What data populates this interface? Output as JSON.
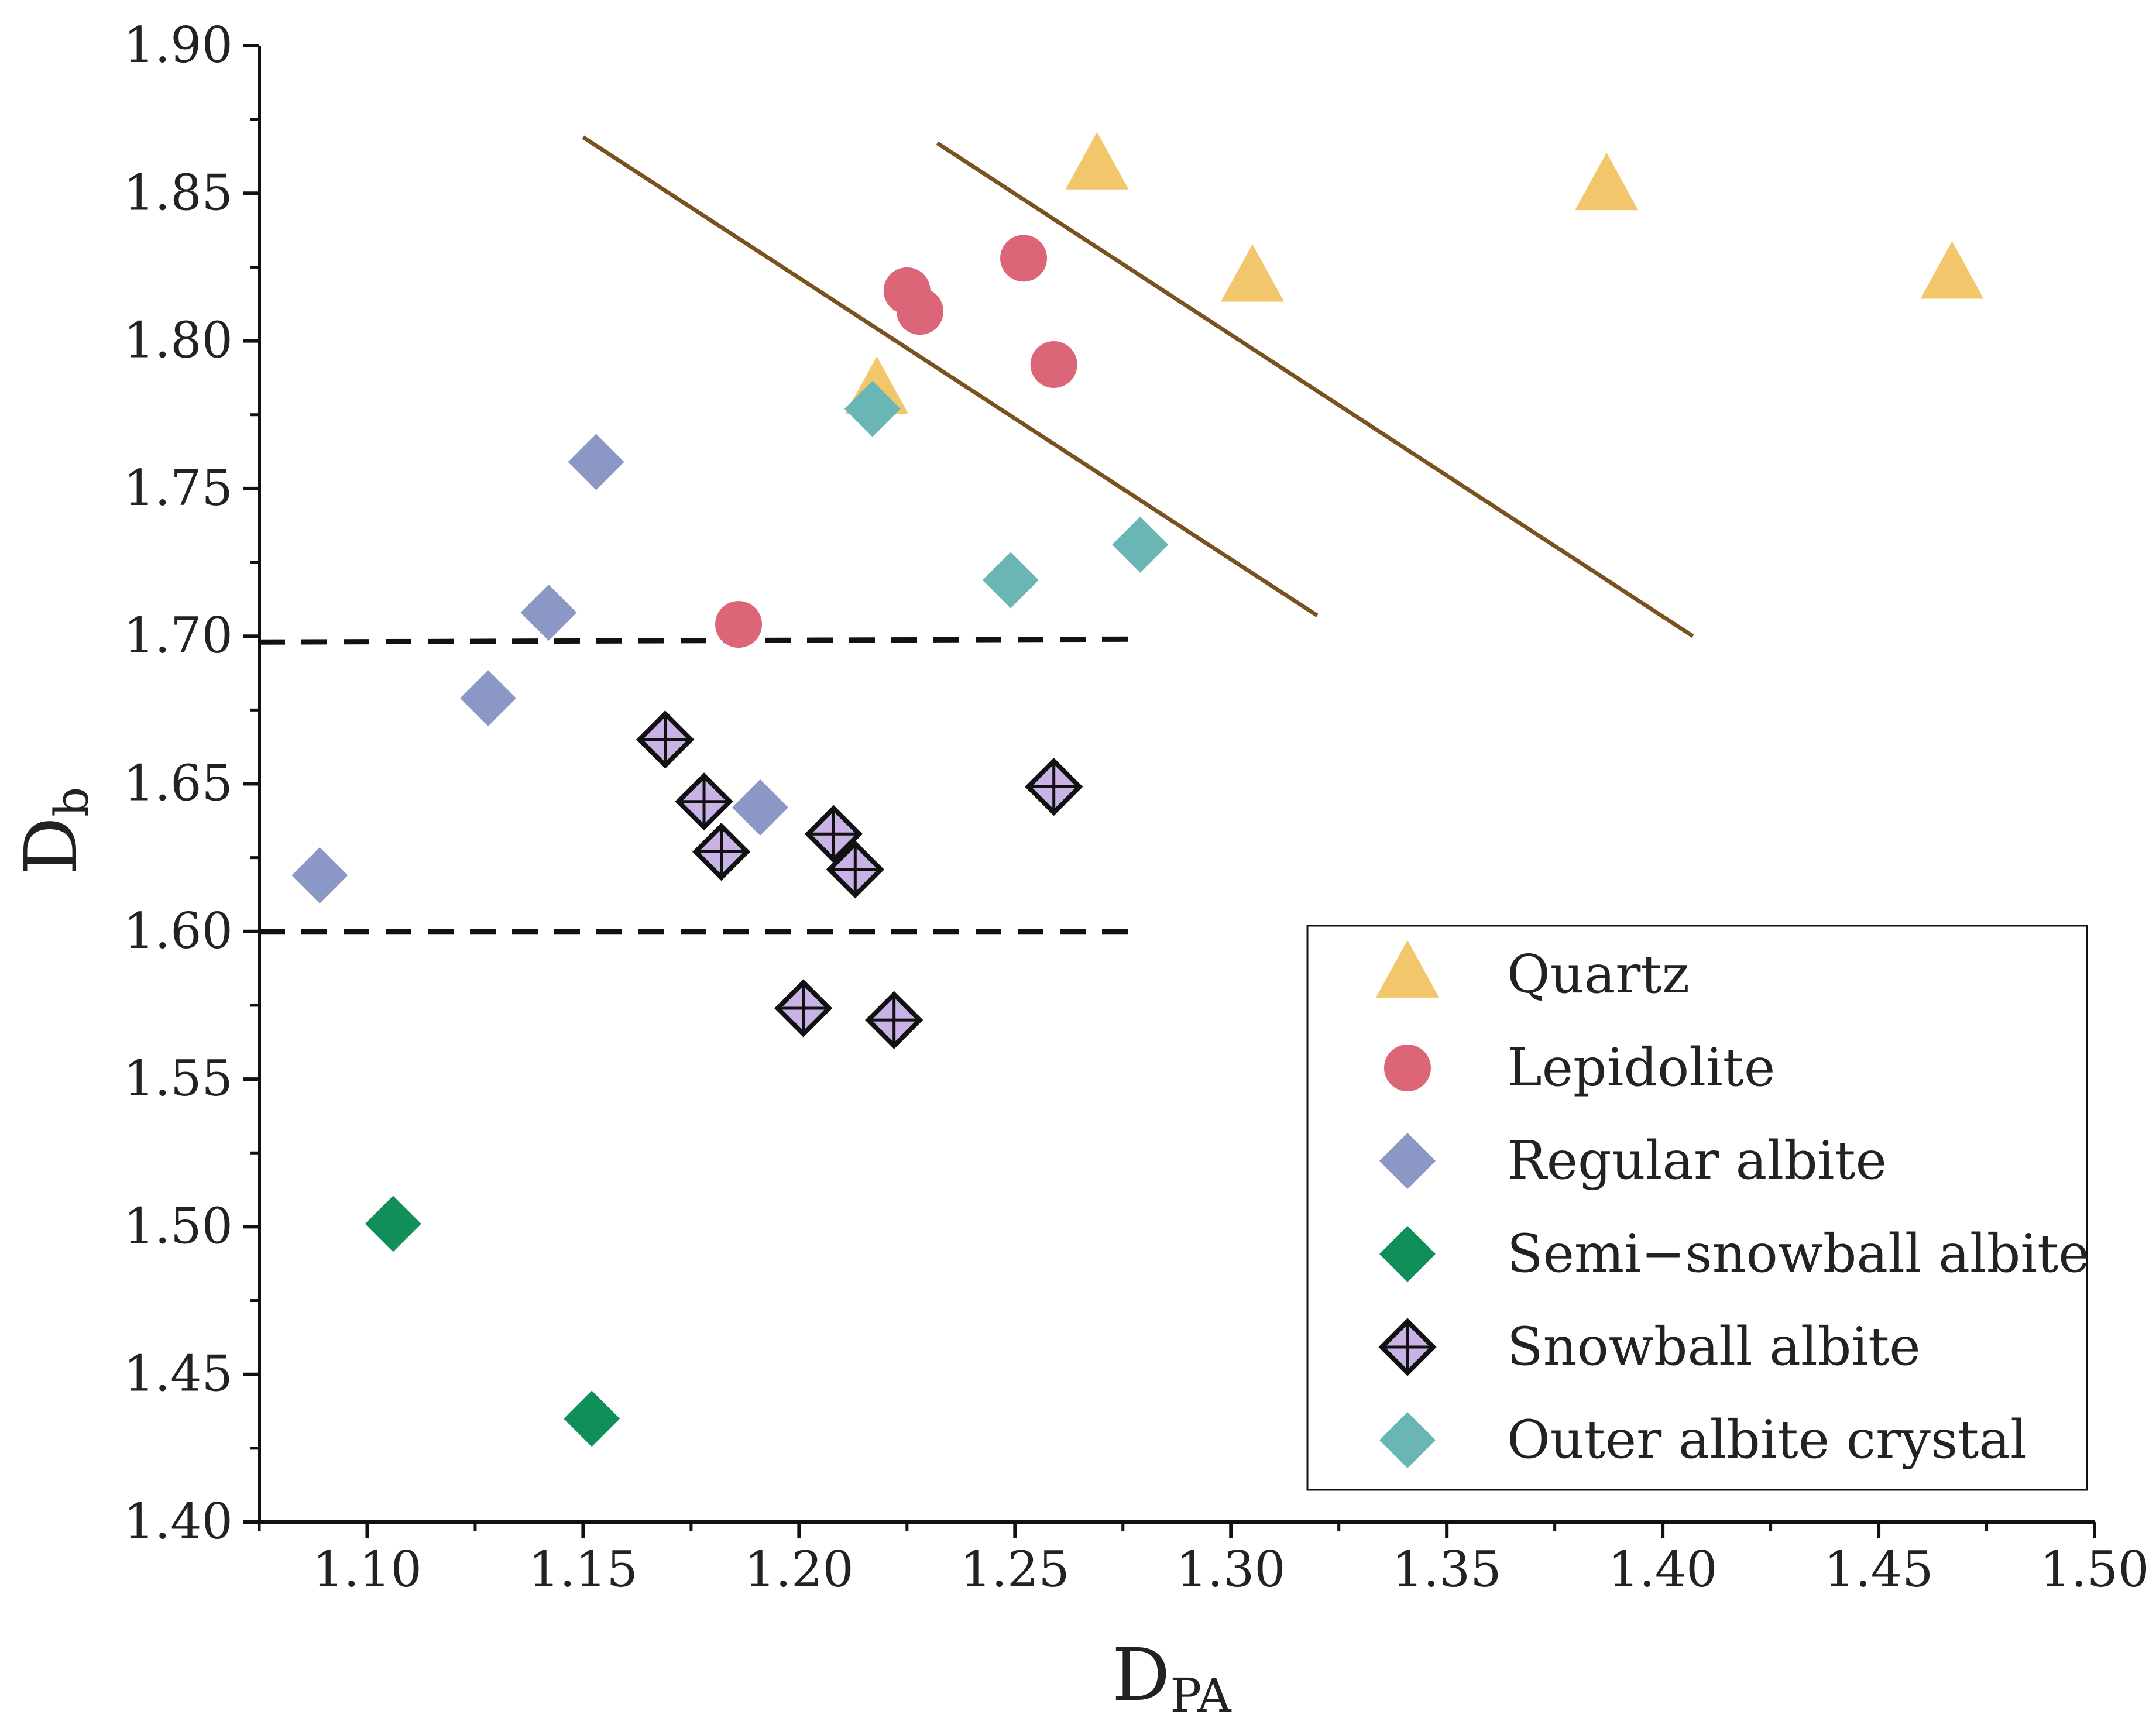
{
  "chart_data": {
    "type": "scatter",
    "title": "",
    "xlabel": {
      "main": "D",
      "sub": "PA"
    },
    "ylabel": {
      "main": "D",
      "sub": "b"
    },
    "xlim": [
      1.075,
      1.5
    ],
    "ylim": [
      1.4,
      1.9
    ],
    "xticks": [
      "1.10",
      "1.15",
      "1.20",
      "1.25",
      "1.30",
      "1.35",
      "1.40",
      "1.45",
      "1.50"
    ],
    "yticks": [
      "1.40",
      "1.45",
      "1.50",
      "1.55",
      "1.60",
      "1.65",
      "1.70",
      "1.75",
      "1.80",
      "1.85",
      "1.90"
    ],
    "grid": false,
    "legend_position": "bottom-right",
    "series": [
      {
        "name": "Quartz",
        "marker": "triangle",
        "color": "#F2C76B",
        "points": [
          [
            1.218,
            1.783
          ],
          [
            1.269,
            1.859
          ],
          [
            1.305,
            1.821
          ],
          [
            1.387,
            1.852
          ],
          [
            1.467,
            1.822
          ]
        ]
      },
      {
        "name": "Lepidolite",
        "marker": "circle",
        "color": "#DC6677",
        "points": [
          [
            1.186,
            1.704
          ],
          [
            1.225,
            1.817
          ],
          [
            1.228,
            1.81
          ],
          [
            1.252,
            1.828
          ],
          [
            1.259,
            1.792
          ]
        ]
      },
      {
        "name": "Regular albite",
        "marker": "diamond",
        "color": "#8B97C5",
        "points": [
          [
            1.089,
            1.619
          ],
          [
            1.128,
            1.679
          ],
          [
            1.142,
            1.708
          ],
          [
            1.153,
            1.759
          ],
          [
            1.191,
            1.642
          ]
        ]
      },
      {
        "name": "Semi−snowball albite",
        "marker": "diamond",
        "color": "#108F5A",
        "points": [
          [
            1.106,
            1.501
          ],
          [
            1.152,
            1.435
          ]
        ]
      },
      {
        "name": "Snowball albite",
        "marker": "diamond-cross",
        "color": "#C8B2E6",
        "stroke": "#111111",
        "points": [
          [
            1.169,
            1.665
          ],
          [
            1.178,
            1.644
          ],
          [
            1.182,
            1.627
          ],
          [
            1.201,
            1.574
          ],
          [
            1.208,
            1.633
          ],
          [
            1.213,
            1.621
          ],
          [
            1.222,
            1.57
          ],
          [
            1.259,
            1.649
          ]
        ]
      },
      {
        "name": "Outer albite crystal",
        "marker": "diamond",
        "color": "#6AB6B4",
        "points": [
          [
            1.217,
            1.777
          ],
          [
            1.249,
            1.719
          ],
          [
            1.279,
            1.731
          ]
        ]
      }
    ],
    "reference_lines": [
      {
        "style": "solid",
        "color": "#7A5220",
        "from": [
          1.15,
          1.869
        ],
        "to": [
          1.32,
          1.707
        ]
      },
      {
        "style": "solid",
        "color": "#7A5220",
        "from": [
          1.232,
          1.867
        ],
        "to": [
          1.407,
          1.7
        ]
      },
      {
        "style": "dashed",
        "color": "#111111",
        "from": [
          1.075,
          1.698
        ],
        "to": [
          1.277,
          1.699
        ]
      },
      {
        "style": "dashed",
        "color": "#111111",
        "from": [
          1.075,
          1.6
        ],
        "to": [
          1.277,
          1.6
        ]
      }
    ]
  }
}
